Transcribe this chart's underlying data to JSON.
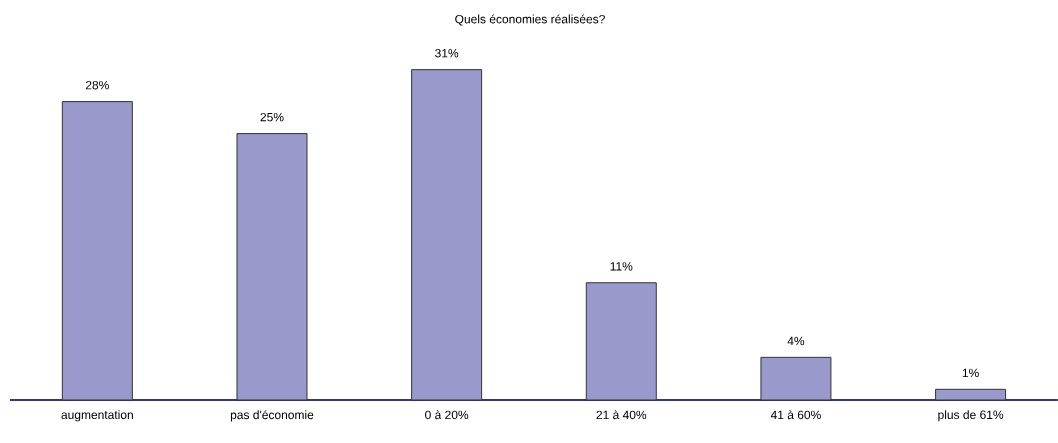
{
  "chart_data": {
    "type": "bar",
    "title": "Quels économies réalisées?",
    "categories": [
      "augmentation",
      "pas d'économie",
      "0 à 20%",
      "21 à 40%",
      "41 à 60%",
      "plus de 61%"
    ],
    "values": [
      28,
      25,
      31,
      11,
      4,
      1
    ],
    "value_labels": [
      "28%",
      "25%",
      "31%",
      "11%",
      "4%",
      "1%"
    ],
    "color": "#9999cc"
  }
}
